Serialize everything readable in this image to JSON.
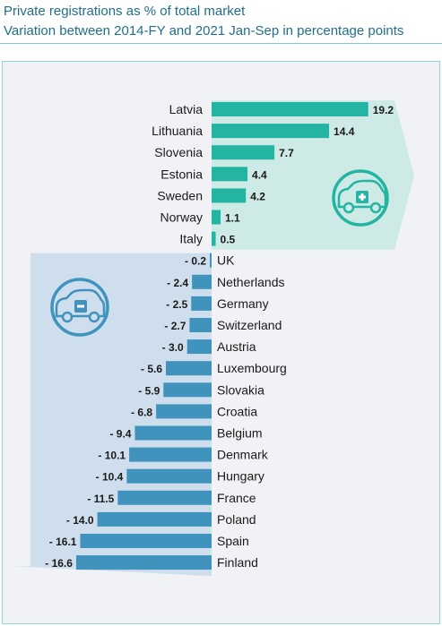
{
  "header": {
    "title": "Private registrations as % of total market",
    "subtitle": "Variation between 2014-FY and 2021 Jan-Sep in percentage points"
  },
  "colors": {
    "positive": "#24b5a2",
    "negative": "#3f93bd",
    "positive_bg": "#cdeae6",
    "negative_bg": "#cfdeec"
  },
  "icons": {
    "positive": "car-plus-icon",
    "negative": "car-minus-icon"
  },
  "chart_data": {
    "type": "bar",
    "orientation": "horizontal",
    "categories": [
      "Latvia",
      "Lithuania",
      "Slovenia",
      "Estonia",
      "Sweden",
      "Norway",
      "Italy",
      "UK",
      "Netherlands",
      "Germany",
      "Switzerland",
      "Austria",
      "Luxembourg",
      "Slovakia",
      "Croatia",
      "Belgium",
      "Denmark",
      "Hungary",
      "France",
      "Poland",
      "Spain",
      "Finland"
    ],
    "values": [
      19.2,
      14.4,
      7.7,
      4.4,
      4.2,
      1.1,
      0.5,
      -0.2,
      -2.4,
      -2.5,
      -2.7,
      -3.0,
      -5.6,
      -5.9,
      -6.8,
      -9.4,
      -10.1,
      -10.4,
      -11.5,
      -14.0,
      -16.1,
      -16.6
    ],
    "value_labels": [
      "19.2",
      "14.4",
      "7.7",
      "4.4",
      "4.2",
      "1.1",
      "0.5",
      "- 0.2",
      "- 2.4",
      "- 2.5",
      "- 2.7",
      "- 3.0",
      "- 5.6",
      "- 5.9",
      "- 6.8",
      "- 9.4",
      "- 10.1",
      "- 10.4",
      "- 11.5",
      "- 14.0",
      "- 16.1",
      "- 16.6"
    ],
    "title": "Private registrations as % of total market",
    "subtitle": "Variation between 2014-FY and 2021 Jan-Sep in percentage points"
  }
}
